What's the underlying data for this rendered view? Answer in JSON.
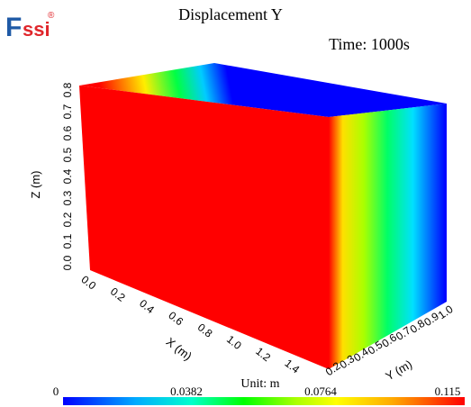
{
  "logo": {
    "letter_f": "F",
    "letters_ssi": "ssi",
    "registered": "®",
    "color_f": "#1f5aa6",
    "color_ssi": "#e0262b"
  },
  "title": "Displacement Y",
  "time_label": "Time: 1000s",
  "unit_label": "Unit:  m",
  "axes": {
    "z": {
      "label": "Z (m)",
      "ticks": [
        "0.0",
        "0.1",
        "0.2",
        "0.3",
        "0.4",
        "0.5",
        "0.6",
        "0.7",
        "0.8"
      ]
    },
    "x": {
      "label": "X (m)",
      "ticks": [
        "0.0",
        "0.2",
        "0.4",
        "0.6",
        "0.8",
        "1.0",
        "1.2",
        "1.4"
      ]
    },
    "y": {
      "label": "Y (m)",
      "ticks": [
        "0.2",
        "0.3",
        "0.4",
        "0.5",
        "0.6",
        "0.7",
        "0.8",
        "0.9",
        "1.0"
      ]
    }
  },
  "colorbar": {
    "labels": [
      "0",
      "0.0382",
      "0.0764",
      "0.115"
    ],
    "min": 0,
    "max": 0.115,
    "colors": [
      "#0000ff",
      "#00aaff",
      "#00ffaa",
      "#00ff00",
      "#aaff00",
      "#ffff00",
      "#ffaa00",
      "#ff0000"
    ]
  },
  "box_colors": {
    "front": "#ff0000",
    "side_stops": [
      "#ff0000",
      "#ffff00",
      "#00ff00",
      "#00ffff",
      "#0000ff"
    ]
  }
}
